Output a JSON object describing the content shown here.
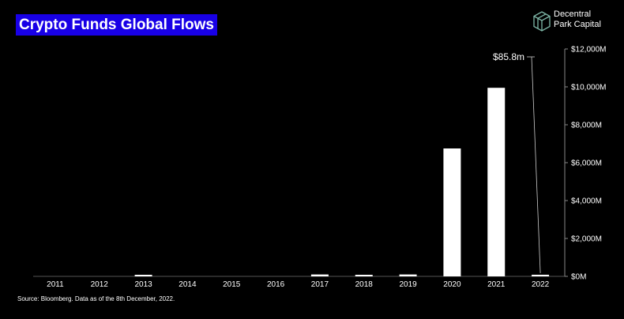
{
  "header": {
    "title": "Crypto Funds Global Flows",
    "brand_line1": "Decentral",
    "brand_line2": "Park Capital"
  },
  "footer": {
    "source": "Source: Bloomberg. Data as of the 8th December, 2022."
  },
  "colors": {
    "title_bg": "#1800e6",
    "bar": "#ffffff",
    "background": "#000000",
    "brand_icon": "#7fb8a8"
  },
  "chart_data": {
    "type": "bar",
    "title": "Crypto Funds Global Flows",
    "xlabel": "",
    "ylabel": "",
    "categories": [
      "2011",
      "2012",
      "2013",
      "2014",
      "2015",
      "2016",
      "2017",
      "2018",
      "2019",
      "2020",
      "2021",
      "2022"
    ],
    "values": [
      0,
      0,
      40,
      0,
      0,
      0,
      100,
      80,
      100,
      6750,
      9950,
      85.8
    ],
    "ylim": [
      0,
      12000
    ],
    "yticks": [
      0,
      2000,
      4000,
      6000,
      8000,
      10000,
      12000
    ],
    "ytick_labels": [
      "$0M",
      "$2,000M",
      "$4,000M",
      "$6,000M",
      "$8,000M",
      "$10,000M",
      "$12,000M"
    ],
    "y_axis_position": "right",
    "grid": false,
    "annotations": [
      {
        "category": "2022",
        "text": "$85.8m"
      }
    ]
  }
}
